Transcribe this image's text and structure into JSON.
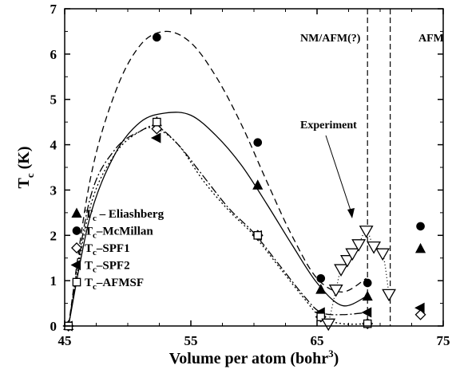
{
  "chart_data": {
    "type": "scatter",
    "xlabel": "Volume per atom (bohr",
    "xlabel_sup": "3",
    "xlabel_end": ")",
    "ylabel": "T",
    "ylabel_sub": "c",
    "ylabel_end": " (K)",
    "xlim": [
      45,
      75
    ],
    "ylim": [
      0,
      7
    ],
    "x_ticks": [
      45,
      55,
      65,
      75
    ],
    "y_ticks": [
      0,
      1,
      2,
      3,
      4,
      5,
      6,
      7
    ],
    "grid": false,
    "legend_position": "left",
    "annotations": {
      "nm_afm": "NM/AFM(?)",
      "afm": "AFM",
      "experiment": "Experiment"
    },
    "phase_boundaries_x": [
      69.0,
      70.8
    ],
    "series": [
      {
        "name": "T",
        "name_sub": "c",
        "name_rest": " – Eliashberg",
        "marker": "triangle-up",
        "filled": true,
        "x": [
          45.3,
          52.3,
          60.3,
          65.3,
          69.0,
          73.2
        ],
        "y": [
          0.0,
          4.5,
          3.1,
          0.8,
          0.65,
          1.7
        ]
      },
      {
        "name": "T",
        "name_sub": "c",
        "name_rest": "–McMillan",
        "marker": "circle",
        "filled": true,
        "x": [
          45.3,
          52.3,
          60.3,
          65.3,
          69.0,
          73.2
        ],
        "y": [
          0.0,
          6.37,
          4.05,
          1.05,
          0.95,
          2.2
        ]
      },
      {
        "name": "T",
        "name_sub": "c",
        "name_rest": "–SPF1",
        "marker": "diamond",
        "filled": false,
        "x": [
          45.3,
          52.3,
          60.3,
          65.3,
          69.0,
          73.2
        ],
        "y": [
          0.0,
          4.35,
          2.0,
          0.2,
          0.05,
          0.25
        ]
      },
      {
        "name": "T",
        "name_sub": "c",
        "name_rest": "–SPF2",
        "marker": "triangle-left",
        "filled": true,
        "x": [
          45.3,
          52.3,
          60.3,
          65.3,
          69.0,
          73.2
        ],
        "y": [
          0.0,
          4.15,
          2.0,
          0.3,
          0.3,
          0.4
        ]
      },
      {
        "name": "T",
        "name_sub": "c",
        "name_rest": "–AFMSF",
        "marker": "square",
        "filled": false,
        "x": [
          45.3,
          52.3,
          60.3,
          65.3,
          69.0
        ],
        "y": [
          0.0,
          4.5,
          2.0,
          0.2,
          0.05
        ]
      },
      {
        "name": "Experiment",
        "marker": "triangle-down",
        "filled": false,
        "in_legend": false,
        "x": [
          65.9,
          66.5,
          66.9,
          67.4,
          67.8,
          68.3,
          68.9,
          69.5,
          70.2,
          70.7
        ],
        "y": [
          0.05,
          0.8,
          1.25,
          1.45,
          1.6,
          1.8,
          2.1,
          1.75,
          1.6,
          0.7
        ]
      }
    ],
    "curves": [
      {
        "for": "McMillan",
        "dash": "8,5",
        "x": [
          45.3,
          47,
          49,
          51,
          53,
          55,
          57,
          59,
          61,
          63,
          65,
          67,
          68.9
        ],
        "y": [
          0.0,
          3.2,
          5.15,
          6.2,
          6.5,
          6.25,
          5.5,
          4.45,
          3.2,
          2.0,
          1.05,
          0.75,
          1.05
        ]
      },
      {
        "for": "Eliashberg",
        "dash": "",
        "x": [
          45.3,
          47,
          49,
          51,
          53,
          55,
          57,
          59,
          61,
          63,
          65,
          67,
          68.9
        ],
        "y": [
          0.0,
          2.4,
          3.8,
          4.5,
          4.7,
          4.65,
          4.2,
          3.55,
          2.7,
          1.8,
          0.95,
          0.45,
          0.65
        ]
      },
      {
        "for": "SPF1",
        "dash": "2,3",
        "x": [
          45.3,
          47,
          49,
          51,
          52.3,
          54,
          56,
          58,
          60,
          62,
          64,
          65.3,
          67,
          69
        ],
        "y": [
          0.0,
          2.6,
          3.8,
          4.3,
          4.35,
          4.0,
          3.2,
          2.55,
          2.0,
          1.3,
          0.6,
          0.2,
          0.05,
          0.05
        ]
      },
      {
        "for": "SPF2",
        "dash": "10,3,2,3",
        "x": [
          45.3,
          47,
          49,
          51,
          52.3,
          54,
          56,
          58,
          60,
          62,
          64,
          65.3,
          67,
          69
        ],
        "y": [
          0.0,
          2.8,
          3.9,
          4.3,
          4.4,
          4.0,
          3.3,
          2.6,
          2.05,
          1.35,
          0.65,
          0.3,
          0.25,
          0.3
        ]
      },
      {
        "for": "Experiment",
        "dash": "1,3",
        "x": [
          65.9,
          66.5,
          66.9,
          67.4,
          67.8,
          68.3,
          68.9,
          69.5,
          70.2,
          70.7
        ],
        "y": [
          0.05,
          0.8,
          1.25,
          1.45,
          1.6,
          1.8,
          2.1,
          1.75,
          1.6,
          0.7
        ]
      }
    ]
  }
}
